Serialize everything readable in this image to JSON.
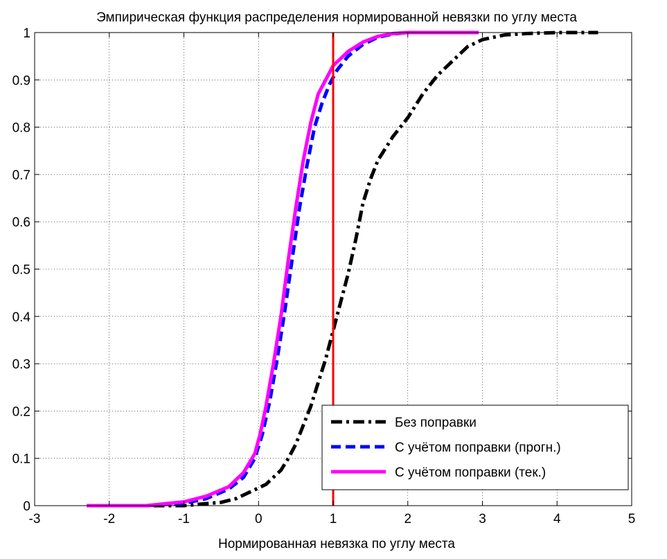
{
  "chart_data": {
    "type": "line",
    "title": "Эмпирическая функция распределения нормированной невязки по углу места",
    "xlabel": "Нормированная невязка по углу места",
    "ylabel": "",
    "xlim": [
      -3,
      5
    ],
    "ylim": [
      0,
      1
    ],
    "xticks": [
      "-3",
      "-2",
      "-1",
      "0",
      "1",
      "2",
      "3",
      "4",
      "5"
    ],
    "yticks": [
      "0",
      "0.1",
      "0.2",
      "0.3",
      "0.4",
      "0.5",
      "0.6",
      "0.7",
      "0.8",
      "0.9",
      "1"
    ],
    "grid": true,
    "legend_position": "bottom-right",
    "vertical_line": {
      "x": 1,
      "color": "#ff0000"
    },
    "series": [
      {
        "name": "Без поправки",
        "color": "#000000",
        "style": "dash-dot",
        "x": [
          -2.3,
          -1.5,
          -1.0,
          -0.8,
          -0.5,
          -0.3,
          -0.1,
          0.1,
          0.2,
          0.3,
          0.4,
          0.5,
          0.6,
          0.7,
          0.8,
          0.9,
          1.0,
          1.1,
          1.2,
          1.3,
          1.4,
          1.5,
          1.6,
          1.8,
          2.0,
          2.2,
          2.4,
          2.6,
          2.8,
          3.0,
          3.3,
          3.6,
          4.0,
          4.55
        ],
        "y": [
          0.0,
          0.0,
          0.0,
          0.003,
          0.007,
          0.015,
          0.03,
          0.045,
          0.06,
          0.075,
          0.1,
          0.13,
          0.17,
          0.21,
          0.26,
          0.31,
          0.37,
          0.43,
          0.49,
          0.56,
          0.64,
          0.69,
          0.73,
          0.78,
          0.82,
          0.87,
          0.91,
          0.94,
          0.97,
          0.985,
          0.995,
          0.998,
          1.0,
          1.0
        ]
      },
      {
        "name": "С учётом поправки (прогн.)",
        "color": "#0000ff",
        "style": "dashed",
        "x": [
          -2.3,
          -1.5,
          -1.0,
          -0.7,
          -0.4,
          -0.2,
          -0.05,
          0.05,
          0.15,
          0.25,
          0.35,
          0.45,
          0.55,
          0.65,
          0.75,
          0.85,
          0.95,
          1.05,
          1.2,
          1.4,
          1.6,
          1.8,
          2.0,
          2.4,
          2.95
        ],
        "y": [
          0.0,
          0.0,
          0.005,
          0.015,
          0.035,
          0.06,
          0.1,
          0.15,
          0.22,
          0.31,
          0.41,
          0.52,
          0.63,
          0.72,
          0.8,
          0.85,
          0.89,
          0.92,
          0.95,
          0.975,
          0.99,
          0.997,
          1.0,
          1.0,
          1.0
        ]
      },
      {
        "name": "С учётом поправки (тек.)",
        "color": "#ff00ff",
        "style": "solid",
        "x": [
          -2.3,
          -1.5,
          -1.0,
          -0.7,
          -0.4,
          -0.2,
          -0.05,
          0.02,
          0.1,
          0.2,
          0.3,
          0.4,
          0.5,
          0.6,
          0.7,
          0.8,
          0.9,
          1.0,
          1.2,
          1.4,
          1.6,
          1.8,
          2.0,
          2.4,
          2.95
        ],
        "y": [
          0.0,
          0.0,
          0.008,
          0.02,
          0.04,
          0.07,
          0.11,
          0.15,
          0.21,
          0.3,
          0.4,
          0.52,
          0.63,
          0.73,
          0.81,
          0.87,
          0.9,
          0.93,
          0.96,
          0.98,
          0.992,
          0.998,
          1.0,
          1.0,
          1.0
        ]
      }
    ]
  }
}
